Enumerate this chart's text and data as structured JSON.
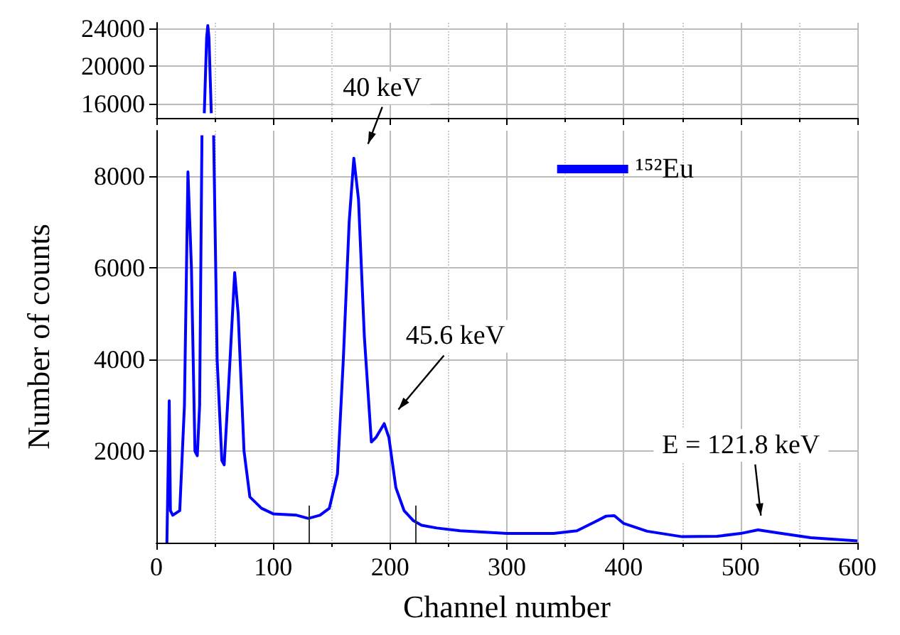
{
  "chart_data": [
    {
      "type": "line",
      "x": [
        41,
        43,
        44,
        45,
        47
      ],
      "series": [
        {
          "color": "#0000ff",
          "values": [
            15000,
            23000,
            24300,
            23000,
            15000
          ]
        }
      ],
      "xlim": [
        0,
        600
      ],
      "xticks": [
        0,
        100,
        200,
        300,
        400,
        500,
        600
      ],
      "ylim": [
        14500,
        24600
      ],
      "yticks": [
        16000,
        20000,
        24000
      ],
      "tick_labels": "y",
      "grid": true,
      "legend": false,
      "marker": "none",
      "line_style": "solid"
    },
    {
      "type": "line",
      "xlabel": "Channel number",
      "ylabel": "Number of counts",
      "x": [
        9,
        11,
        12,
        14,
        20,
        24,
        27,
        30,
        33,
        35,
        37,
        39,
        44,
        49,
        52,
        56,
        58,
        62,
        67,
        70,
        75,
        80,
        90,
        100,
        120,
        130,
        140,
        148,
        155,
        160,
        165,
        169,
        173,
        178,
        184,
        188,
        195,
        199,
        205,
        212,
        220,
        227,
        240,
        260,
        300,
        340,
        360,
        375,
        385,
        392,
        400,
        420,
        450,
        480,
        500,
        515,
        530,
        560,
        600
      ],
      "series": [
        {
          "name": "¹⁵²Eu",
          "color": "#0000ff",
          "values": [
            0,
            3100,
            700,
            600,
            700,
            3000,
            8100,
            6000,
            2000,
            1900,
            3000,
            8900,
            null,
            8900,
            4000,
            1800,
            1700,
            3500,
            5900,
            5000,
            2000,
            1000,
            750,
            630,
            600,
            530,
            600,
            750,
            1500,
            4000,
            7000,
            8400,
            7500,
            4500,
            2200,
            2300,
            2600,
            2300,
            1200,
            700,
            480,
            380,
            320,
            260,
            200,
            200,
            260,
            450,
            580,
            590,
            420,
            250,
            130,
            140,
            200,
            280,
            220,
            110,
            40
          ]
        }
      ],
      "xlim": [
        0,
        600
      ],
      "xticks": [
        0,
        100,
        200,
        300,
        400,
        500,
        600
      ],
      "ylim": [
        0,
        9000
      ],
      "yticks": [
        2000,
        4000,
        6000,
        8000
      ],
      "grid": true,
      "legend": "top right",
      "marker": "none",
      "line_style": "solid",
      "annotations": [
        {
          "text": "40 keV",
          "x": 169,
          "y": 8400
        },
        {
          "text": "45.6 keV",
          "x": 195,
          "y": 2600
        },
        {
          "text": "E = 121.8 keV",
          "x": 515,
          "y": 280
        }
      ],
      "ref_lines": [
        {
          "axis": "x",
          "value": 130,
          "color": "#333333"
        },
        {
          "axis": "x",
          "value": 222,
          "color": "#333333"
        }
      ]
    }
  ]
}
